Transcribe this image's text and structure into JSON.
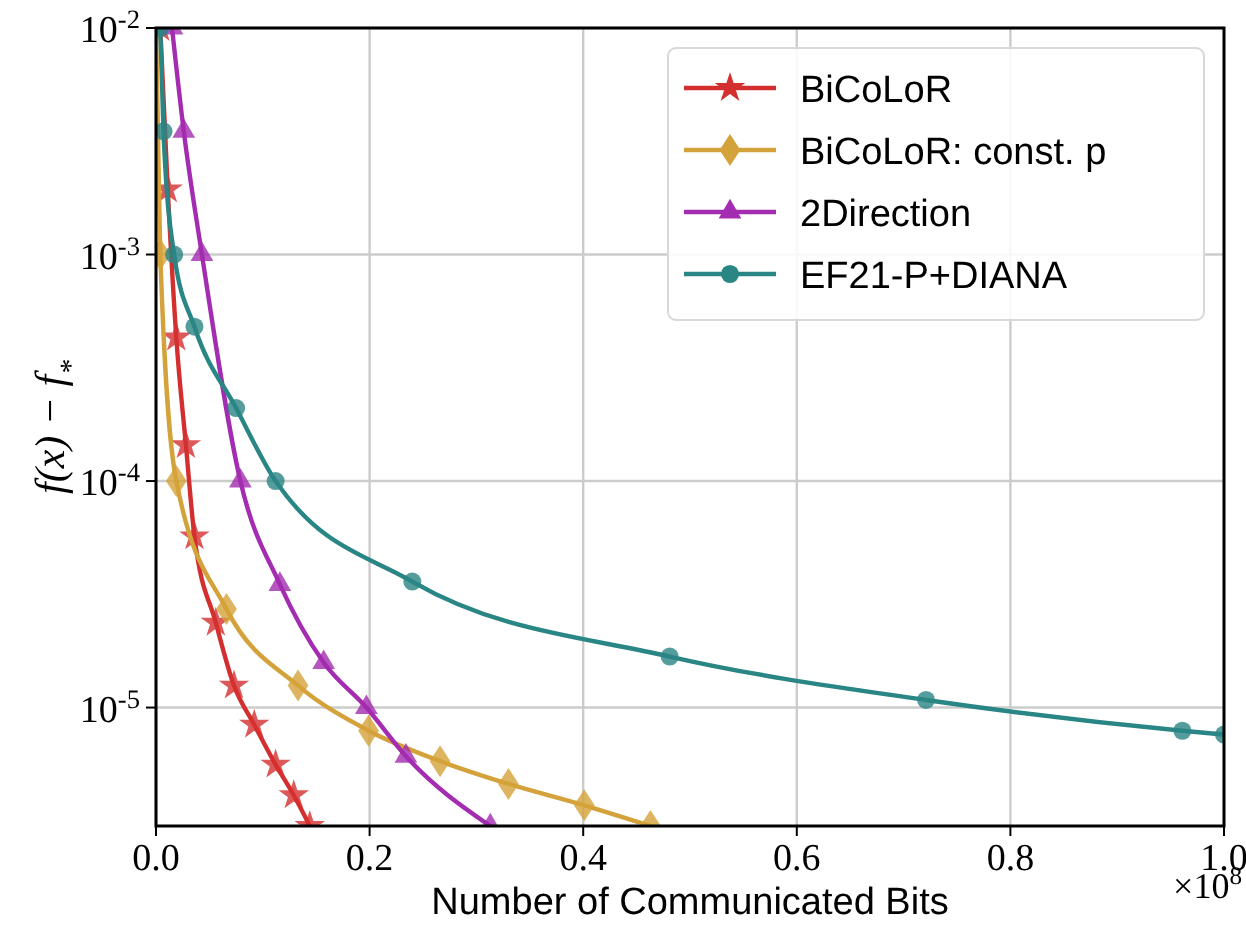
{
  "chart_data": {
    "type": "line",
    "xlabel": "Number of Communicated Bits",
    "ylabel": "f(x) − f$_{*}$",
    "log": "y",
    "grid": true,
    "legend": "top right",
    "line_style": "solid",
    "xlim": [
      0,
      1.0
    ],
    "xticks": [
      {
        "value": 0,
        "label": "0.0"
      },
      0.2,
      0.4,
      0.6,
      0.8,
      {
        "value": 1.0,
        "label": "1.0"
      }
    ],
    "ylim": [
      3e-06,
      0.01
    ],
    "yticks": [
      {
        "value": 1e-05,
        "label": "10$^{-5}$"
      },
      {
        "value": 0.0001,
        "label": "10$^{-4}$"
      },
      {
        "value": 0.001,
        "label": "10$^{-3}$"
      },
      {
        "value": 0.01,
        "label": "10$^{-2}$"
      }
    ],
    "annotations": [
      "×10$^{8}$"
    ],
    "series": [
      {
        "name": "BiCoLoR",
        "color": "#d42f2f",
        "marker": "star",
        "x": [
          0.004,
          0.011,
          0.019,
          0.028,
          0.036,
          0.056,
          0.073,
          0.092,
          0.112,
          0.129,
          0.144
        ],
        "values": [
          0.01,
          0.00194,
          0.00043,
          0.000144,
          5.7e-05,
          2.37e-05,
          1.25e-05,
          8.4e-06,
          5.6e-06,
          4.1e-06,
          3e-06
        ]
      },
      {
        "name": "BiCoLoR: const. p",
        "color": "#d4a23a",
        "marker": "diamond",
        "x": [
          0,
          0.004,
          0.019,
          0.066,
          0.133,
          0.199,
          0.266,
          0.33,
          0.401,
          0.463
        ],
        "values": [
          0.01,
          0.001,
          0.0001,
          2.72e-05,
          1.25e-05,
          7.9e-06,
          5.8e-06,
          4.6e-06,
          3.7e-06,
          3e-06
        ]
      },
      {
        "name": "2Direction",
        "color": "#a32cb0",
        "marker": "triangle",
        "x": [
          0.015,
          0.026,
          0.043,
          0.079,
          0.116,
          0.157,
          0.197,
          0.234,
          0.313
        ],
        "values": [
          0.01,
          0.0035,
          0.001,
          0.0001,
          3.5e-05,
          1.58e-05,
          1e-05,
          6.1e-06,
          3e-06
        ]
      },
      {
        "name": "EF21-P+DIANA",
        "color": "#2a8585",
        "marker": "circle",
        "x": [
          0.004,
          0.007,
          0.017,
          0.036,
          0.075,
          0.112,
          0.24,
          0.481,
          0.721,
          0.961,
          1.0
        ],
        "values": [
          0.01,
          0.0035,
          0.001,
          0.00048,
          0.00021,
          0.0001,
          3.6e-05,
          1.68e-05,
          1.08e-05,
          7.9e-06,
          7.6e-06
        ]
      }
    ]
  }
}
